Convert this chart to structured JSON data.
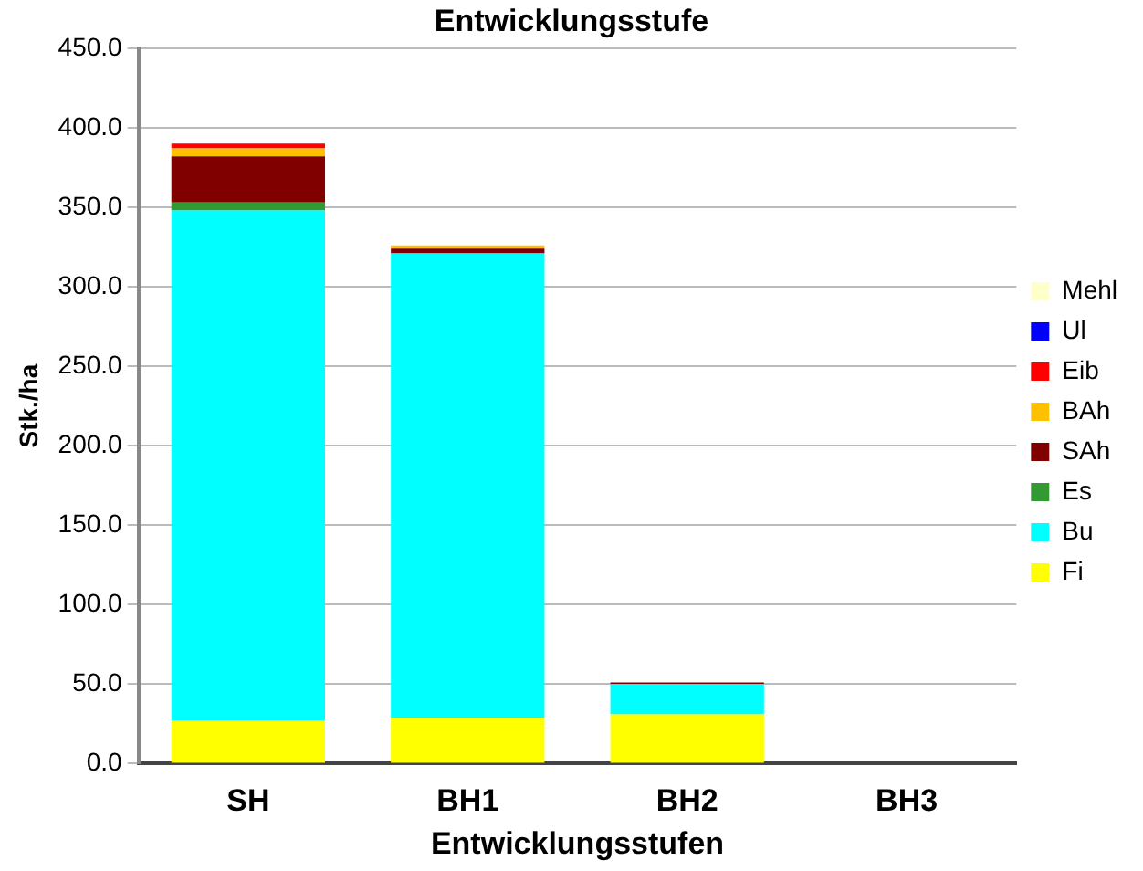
{
  "chart_data": {
    "type": "bar",
    "title": "Entwicklungsstufe",
    "xlabel": "Entwicklungsstufen",
    "ylabel": "Stk./ha",
    "categories": [
      "SH",
      "BH1",
      "BH2",
      "BH3"
    ],
    "stacked": true,
    "series": [
      {
        "name": "Fi",
        "color": "#ffff00",
        "values": [
          27,
          29,
          31,
          null
        ]
      },
      {
        "name": "Bu",
        "color": "#00ffff",
        "values": [
          321,
          292,
          19,
          0
        ]
      },
      {
        "name": "Es",
        "color": "#339933",
        "values": [
          5,
          0,
          0,
          0
        ]
      },
      {
        "name": "SAh",
        "color": "#800000",
        "values": [
          29,
          3,
          1,
          0
        ]
      },
      {
        "name": "BAh",
        "color": "#ffc000",
        "values": [
          5,
          2,
          0,
          0
        ]
      },
      {
        "name": "Eib",
        "color": "#ff0000",
        "values": [
          3,
          0,
          0,
          0
        ]
      },
      {
        "name": "Ul",
        "color": "#0000ff",
        "values": [
          0,
          0,
          0,
          0
        ]
      },
      {
        "name": "Mehl",
        "color": "#ffffcc",
        "values": [
          0,
          0,
          0,
          0
        ]
      }
    ],
    "ylim": [
      0,
      450
    ],
    "yticks": [
      {
        "value": 0,
        "label": "0.0"
      },
      {
        "value": 50,
        "label": "50.0"
      },
      {
        "value": 100,
        "label": "100.0"
      },
      {
        "value": 150,
        "label": "150.0"
      },
      {
        "value": 200,
        "label": "200.0"
      },
      {
        "value": 250,
        "label": "250.0"
      },
      {
        "value": 300,
        "label": "300.0"
      },
      {
        "value": 350,
        "label": "350.0"
      },
      {
        "value": 400,
        "label": "400.0"
      },
      {
        "value": 450,
        "label": "450.0"
      }
    ],
    "grid": "y",
    "legend": "right"
  }
}
